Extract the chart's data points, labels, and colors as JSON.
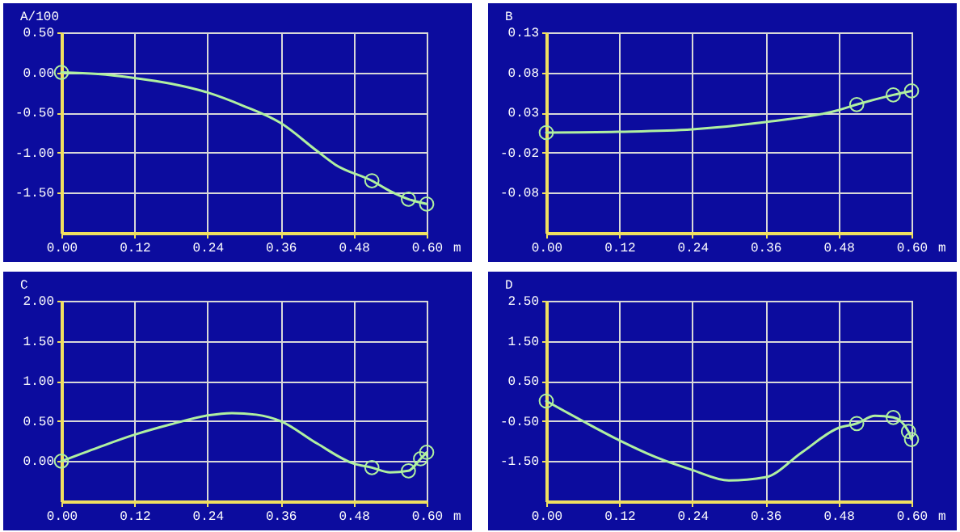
{
  "chart_data": [
    {
      "type": "line",
      "ylabel": "A/100",
      "xlabel": "m",
      "xlim": [
        0,
        0.6
      ],
      "ylim": [
        -2.0,
        0.5
      ],
      "grid": true,
      "xticks": [
        {
          "value": 0,
          "label": "0.00"
        },
        {
          "value": 0.12,
          "label": "0.12"
        },
        {
          "value": 0.24,
          "label": "0.24"
        },
        {
          "value": 0.36,
          "label": "0.36"
        },
        {
          "value": 0.48,
          "label": "0.48"
        },
        {
          "value": 0.6,
          "label": "0.60"
        }
      ],
      "yticks": [
        {
          "value": 0.5,
          "label": "0.50"
        },
        {
          "value": 0,
          "label": "0.00"
        },
        {
          "value": -0.5,
          "label": "-0.50"
        },
        {
          "value": -1,
          "label": "-1.00"
        },
        {
          "value": -1.5,
          "label": "-1.50"
        }
      ],
      "series": [
        {
          "type": "line",
          "color": "#b0f0a0",
          "marker": "none",
          "x": [
            0,
            0.06,
            0.12,
            0.18,
            0.24,
            0.3,
            0.36,
            0.42,
            0.45,
            0.51,
            0.54,
            0.57,
            0.6
          ],
          "values": [
            0,
            -0.02,
            -0.07,
            -0.14,
            -0.25,
            -0.42,
            -0.63,
            -0.98,
            -1.15,
            -1.35,
            -1.48,
            -1.58,
            -1.64
          ]
        },
        {
          "type": "scatter",
          "color": "#b0f0a0",
          "marker": "circle",
          "x": [
            0,
            0.51,
            0.57,
            0.6
          ],
          "values": [
            0,
            -1.35,
            -1.58,
            -1.64
          ]
        }
      ]
    },
    {
      "type": "line",
      "ylabel": "B",
      "xlabel": "m",
      "xlim": [
        0,
        0.6
      ],
      "ylim": [
        -0.125,
        0.125
      ],
      "grid": true,
      "xticks": [
        {
          "value": 0,
          "label": "0.00"
        },
        {
          "value": 0.12,
          "label": "0.12"
        },
        {
          "value": 0.24,
          "label": "0.24"
        },
        {
          "value": 0.36,
          "label": "0.36"
        },
        {
          "value": 0.48,
          "label": "0.48"
        },
        {
          "value": 0.6,
          "label": "0.60"
        }
      ],
      "yticks": [
        {
          "value": 0.125,
          "label": "0.13"
        },
        {
          "value": 0.075,
          "label": "0.08"
        },
        {
          "value": 0.025,
          "label": "0.03"
        },
        {
          "value": -0.025,
          "label": "-0.02"
        },
        {
          "value": -0.075,
          "label": "-0.08"
        }
      ],
      "series": [
        {
          "type": "line",
          "color": "#b0f0a0",
          "marker": "none",
          "x": [
            0,
            0.12,
            0.24,
            0.36,
            0.48,
            0.51,
            0.57,
            0.6
          ],
          "values": [
            0.0,
            0.001,
            0.004,
            0.013,
            0.028,
            0.035,
            0.047,
            0.052
          ]
        },
        {
          "type": "scatter",
          "color": "#b0f0a0",
          "marker": "circle",
          "x": [
            0,
            0.51,
            0.57,
            0.6
          ],
          "values": [
            0.0,
            0.035,
            0.047,
            0.052
          ]
        }
      ]
    },
    {
      "type": "line",
      "ylabel": "C",
      "xlabel": "m",
      "xlim": [
        0,
        0.6
      ],
      "ylim": [
        -0.5,
        2.0
      ],
      "grid": true,
      "xticks": [
        {
          "value": 0,
          "label": "0.00"
        },
        {
          "value": 0.12,
          "label": "0.12"
        },
        {
          "value": 0.24,
          "label": "0.24"
        },
        {
          "value": 0.36,
          "label": "0.36"
        },
        {
          "value": 0.48,
          "label": "0.48"
        },
        {
          "value": 0.6,
          "label": "0.60"
        }
      ],
      "yticks": [
        {
          "value": 2,
          "label": "2.00"
        },
        {
          "value": 1.5,
          "label": "1.50"
        },
        {
          "value": 1,
          "label": "1.00"
        },
        {
          "value": 0.5,
          "label": "0.50"
        },
        {
          "value": 0,
          "label": "0.00"
        }
      ],
      "series": [
        {
          "type": "line",
          "color": "#b0f0a0",
          "marker": "none",
          "x": [
            0,
            0.06,
            0.12,
            0.18,
            0.24,
            0.28,
            0.32,
            0.36,
            0.42,
            0.48,
            0.51,
            0.54,
            0.57,
            0.59,
            0.6
          ],
          "values": [
            0,
            0.17,
            0.33,
            0.46,
            0.57,
            0.6,
            0.58,
            0.5,
            0.22,
            -0.03,
            -0.08,
            -0.14,
            -0.12,
            0.03,
            0.11
          ]
        },
        {
          "type": "scatter",
          "color": "#b0f0a0",
          "marker": "circle",
          "x": [
            0,
            0.51,
            0.57,
            0.59,
            0.6
          ],
          "values": [
            0,
            -0.08,
            -0.12,
            0.03,
            0.11
          ]
        }
      ]
    },
    {
      "type": "line",
      "ylabel": "D",
      "xlabel": "m",
      "xlim": [
        0,
        0.6
      ],
      "ylim": [
        -2.5,
        2.5
      ],
      "grid": true,
      "xticks": [
        {
          "value": 0,
          "label": "0.00"
        },
        {
          "value": 0.12,
          "label": "0.12"
        },
        {
          "value": 0.24,
          "label": "0.24"
        },
        {
          "value": 0.36,
          "label": "0.36"
        },
        {
          "value": 0.48,
          "label": "0.48"
        },
        {
          "value": 0.6,
          "label": "0.60"
        }
      ],
      "yticks": [
        {
          "value": 2.5,
          "label": "2.50"
        },
        {
          "value": 1.5,
          "label": "1.50"
        },
        {
          "value": 0.5,
          "label": "0.50"
        },
        {
          "value": -0.5,
          "label": "-0.50"
        },
        {
          "value": -1.5,
          "label": "-1.50"
        }
      ],
      "series": [
        {
          "type": "line",
          "color": "#b0f0a0",
          "marker": "none",
          "x": [
            0,
            0.06,
            0.12,
            0.18,
            0.24,
            0.3,
            0.36,
            0.42,
            0.48,
            0.51,
            0.54,
            0.57,
            0.595,
            0.6
          ],
          "values": [
            0,
            -0.5,
            -0.98,
            -1.4,
            -1.72,
            -1.98,
            -1.9,
            -1.28,
            -0.67,
            -0.56,
            -0.37,
            -0.41,
            -0.76,
            -0.96
          ]
        },
        {
          "type": "scatter",
          "color": "#b0f0a0",
          "marker": "circle",
          "x": [
            0,
            0.51,
            0.57,
            0.595,
            0.6
          ],
          "values": [
            0,
            -0.56,
            -0.41,
            -0.76,
            -0.96
          ]
        }
      ]
    }
  ]
}
